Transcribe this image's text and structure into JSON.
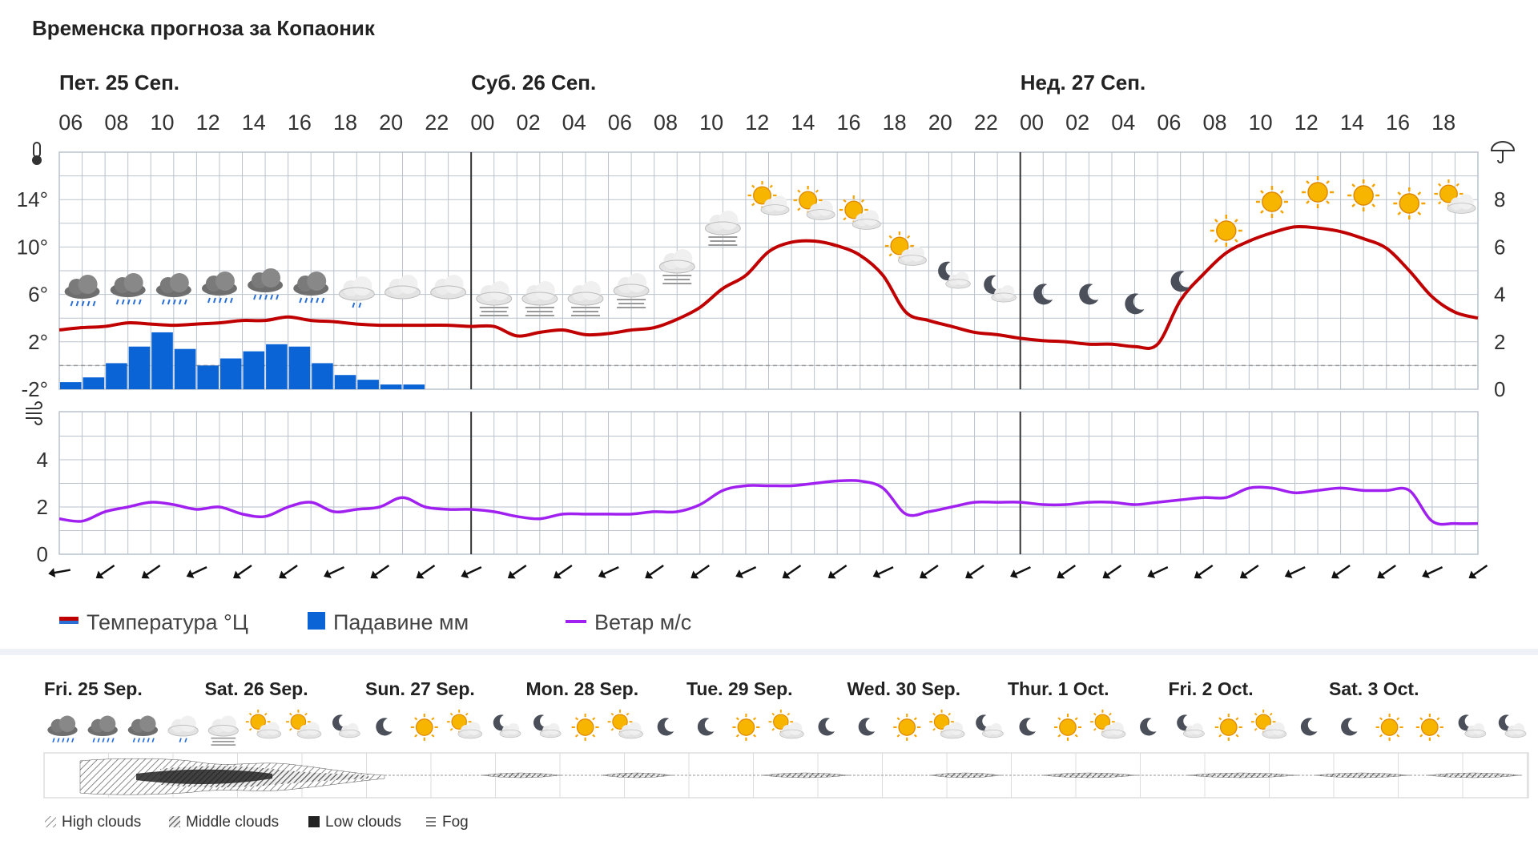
{
  "title": "Временска прогноза за Копаоник",
  "day_headers": [
    "Пет. 25 Сеп.",
    "Суб. 26 Сеп.",
    "Нед. 27 Сеп."
  ],
  "hour_labels": [
    "06",
    "08",
    "10",
    "12",
    "14",
    "16",
    "18",
    "20",
    "22",
    "00",
    "02",
    "04",
    "06",
    "08",
    "10",
    "12",
    "14",
    "16",
    "18",
    "20",
    "22",
    "00",
    "02",
    "04",
    "06",
    "08",
    "10",
    "12",
    "14",
    "16",
    "18"
  ],
  "icons": {
    "thermometer": "thermometer-icon",
    "umbrella": "umbrella-icon",
    "wind": "wind-icon"
  },
  "colors": {
    "temperature": "#c00000",
    "precipitation": "#0a64d6",
    "wind": "#a020f0",
    "grid": "#b9c2cc"
  },
  "legend": {
    "temperature": "Температура °Ц",
    "precipitation": "Падавине мм",
    "wind": "Ветар м/с"
  },
  "chart_data": [
    {
      "type": "line",
      "series_name": "Температура °Ц",
      "y_ticks": [
        "14°",
        "10°",
        "6°",
        "2°",
        "-2°"
      ],
      "y_right_ticks": [
        "8",
        "6",
        "4",
        "2",
        "0"
      ],
      "ylim": [
        -2,
        18
      ],
      "x_hours": [
        0,
        1,
        2,
        3,
        4,
        5,
        6,
        7,
        8,
        9,
        10,
        11,
        12,
        13,
        14,
        15,
        16,
        17,
        18,
        19,
        20,
        21,
        22,
        23,
        24,
        25,
        26,
        27,
        28,
        29,
        30,
        31,
        32,
        33,
        34,
        35,
        36,
        37,
        38,
        39,
        40,
        41,
        42,
        43,
        44,
        45,
        46,
        47,
        48,
        49,
        50,
        51,
        52,
        53,
        54,
        55,
        56,
        57,
        58,
        59,
        60,
        61,
        62
      ],
      "values": [
        3.0,
        3.2,
        3.3,
        3.6,
        3.5,
        3.4,
        3.5,
        3.6,
        3.8,
        3.8,
        4.1,
        3.8,
        3.7,
        3.5,
        3.4,
        3.4,
        3.4,
        3.4,
        3.3,
        3.3,
        2.5,
        2.8,
        3.0,
        2.6,
        2.7,
        3.0,
        3.2,
        3.9,
        4.9,
        6.5,
        7.6,
        9.6,
        10.4,
        10.5,
        10.1,
        9.3,
        7.6,
        4.5,
        3.8,
        3.3,
        2.8,
        2.6,
        2.3,
        2.1,
        2.0,
        1.8,
        1.8,
        1.6,
        1.8,
        5.5,
        7.7,
        9.5,
        10.5,
        11.2,
        11.7,
        11.6,
        11.3,
        10.7,
        9.9,
        8.0,
        5.8,
        4.5,
        4.0
      ]
    },
    {
      "type": "bar",
      "series_name": "Падавине мм",
      "ylim": [
        0,
        10
      ],
      "x_hours": [
        0,
        1,
        2,
        3,
        4,
        5,
        6,
        7,
        8,
        9,
        10,
        11,
        12,
        13,
        14,
        15
      ],
      "values": [
        0.3,
        0.5,
        1.1,
        1.8,
        2.4,
        1.7,
        1.0,
        1.3,
        1.6,
        1.9,
        1.8,
        1.1,
        0.6,
        0.4,
        0.2,
        0.2
      ]
    },
    {
      "type": "line",
      "series_name": "Ветар м/с",
      "y_ticks": [
        "4",
        "2",
        "0"
      ],
      "ylim": [
        0,
        5
      ],
      "x_hours": [
        0,
        1,
        2,
        3,
        4,
        5,
        6,
        7,
        8,
        9,
        10,
        11,
        12,
        13,
        14,
        15,
        16,
        17,
        18,
        19,
        20,
        21,
        22,
        23,
        24,
        25,
        26,
        27,
        28,
        29,
        30,
        31,
        32,
        33,
        34,
        35,
        36,
        37,
        38,
        39,
        40,
        41,
        42,
        43,
        44,
        45,
        46,
        47,
        48,
        49,
        50,
        51,
        52,
        53,
        54,
        55,
        56,
        57,
        58,
        59,
        60,
        61,
        62
      ],
      "values": [
        1.5,
        1.4,
        1.8,
        2.0,
        2.2,
        2.1,
        1.9,
        2.0,
        1.7,
        1.6,
        2.0,
        2.2,
        1.8,
        1.9,
        2.0,
        2.4,
        2.0,
        1.9,
        1.9,
        1.8,
        1.6,
        1.5,
        1.7,
        1.7,
        1.7,
        1.7,
        1.8,
        1.8,
        2.1,
        2.7,
        2.9,
        2.9,
        2.9,
        3.0,
        3.1,
        3.1,
        2.8,
        1.7,
        1.8,
        2.0,
        2.2,
        2.2,
        2.2,
        2.1,
        2.1,
        2.2,
        2.2,
        2.1,
        2.2,
        2.3,
        2.4,
        2.4,
        2.8,
        2.8,
        2.6,
        2.7,
        2.8,
        2.7,
        2.7,
        2.7,
        1.4,
        1.3,
        1.3
      ]
    }
  ],
  "weather_icons": [
    "rain",
    "rain",
    "rain",
    "rain",
    "rain",
    "rain",
    "rain-light",
    "cloud",
    "cloud",
    "cloud-fog",
    "cloud-fog",
    "cloud-fog",
    "cloud-fog",
    "cloud-fog",
    "fog",
    "sun-cloud",
    "sun-cloud",
    "sun-cloud",
    "sun-cloud",
    "moon-cloud",
    "moon-cloud",
    "moon",
    "moon",
    "moon",
    "moon",
    "sun",
    "sun",
    "sun",
    "sun",
    "sun",
    "sun-cloud",
    "sun-cloud"
  ],
  "wind_dirs": [
    "SW",
    "SW",
    "SW",
    "SW",
    "SW",
    "SW",
    "SW",
    "SW",
    "SW",
    "SW",
    "SW",
    "SW",
    "SW",
    "SW",
    "SW",
    "SW",
    "SW",
    "SW",
    "SW",
    "SW",
    "SW",
    "SW",
    "SW",
    "SW",
    "SW",
    "SW",
    "SW",
    "SW",
    "SW",
    "SW",
    "SW",
    "SW"
  ],
  "week": {
    "days": [
      "Fri. 25 Sep.",
      "Sat. 26 Sep.",
      "Sun. 27 Sep.",
      "Mon. 28 Sep.",
      "Tue. 29 Sep.",
      "Wed. 30 Sep.",
      "Thur. 1 Oct.",
      "Fri. 2 Oct.",
      "Sat. 3 Oct."
    ],
    "icons": [
      "rain",
      "rain",
      "rain",
      "rain-light",
      "cloud-fog",
      "sun-cloud",
      "sun-cloud",
      "moon-cloud",
      "moon",
      "sun",
      "sun-cloud",
      "moon-cloud",
      "moon-cloud",
      "sun",
      "sun-cloud",
      "moon",
      "moon",
      "sun",
      "sun-cloud",
      "moon",
      "moon",
      "sun",
      "sun-cloud",
      "moon-cloud",
      "moon",
      "sun",
      "sun-cloud",
      "moon",
      "moon-cloud",
      "sun",
      "sun-cloud",
      "moon",
      "moon",
      "sun",
      "sun",
      "moon-cloud",
      "moon-cloud"
    ],
    "cloud_legend": [
      "High clouds",
      "Middle clouds",
      "Low clouds",
      "Fog"
    ]
  }
}
